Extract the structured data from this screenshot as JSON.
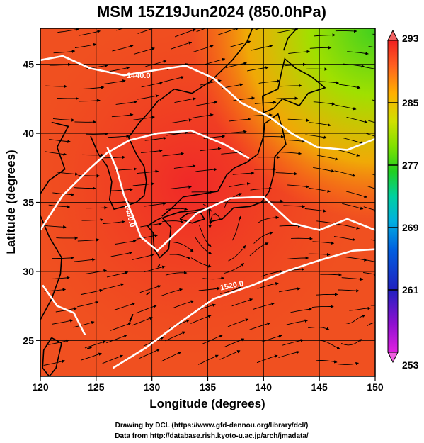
{
  "title": "MSM 15Z19Jun2024 (850.0hPa)",
  "xlabel": "Longitude (degrees)",
  "ylabel": "Latitude  (degrees)",
  "x_ticks": [
    "120",
    "125",
    "130",
    "135",
    "140",
    "145",
    "150"
  ],
  "y_ticks": [
    "25",
    "30",
    "35",
    "40",
    "45"
  ],
  "x_range": [
    120,
    150
  ],
  "y_range": [
    22.4,
    47.6
  ],
  "x_tick_values": [
    120,
    125,
    130,
    135,
    140,
    145,
    150
  ],
  "y_tick_values": [
    25,
    30,
    35,
    40,
    45
  ],
  "colorbar": {
    "min_label": "253",
    "max_label": "293",
    "tick_labels": [
      "293",
      "285",
      "277",
      "269",
      "261",
      "253"
    ],
    "tick_values": [
      293,
      285,
      277,
      269,
      261,
      253
    ],
    "range": [
      253,
      293
    ],
    "colors": [
      "#e020e0",
      "#9010d0",
      "#2020c0",
      "#0060e0",
      "#00b0e0",
      "#00d0a0",
      "#20d020",
      "#80e000",
      "#d0e000",
      "#ffb000",
      "#ff6020",
      "#f02020"
    ]
  },
  "contour_labels": [
    {
      "text": "1440.0",
      "lon": 128.8,
      "lat": 44.0
    },
    {
      "text": "1480.0",
      "lon": 127.8,
      "lat": 34.0
    },
    {
      "text": "1520.0",
      "lon": 137.2,
      "lat": 28.8
    }
  ],
  "credits": [
    "Drawing by DCL (https://www.gfd-dennou.org/library/dcl/)",
    "Data from http://database.rish.kyoto-u.ac.jp/arch/jmadata/"
  ]
}
